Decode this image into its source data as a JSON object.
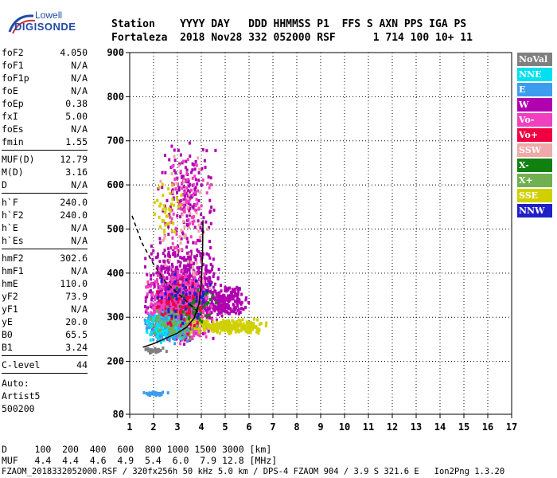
{
  "logo": {
    "line1": "Lowell",
    "line2": "DIGISONDE"
  },
  "header": {
    "line1": "Station    YYYY DAY   DDD HHMMSS P1  FFS S AXN PPS IGA PS",
    "line2": "Fortaleza  2018 Nov28 332 052000 RSF      1 714 100 10+ 11"
  },
  "params": [
    [
      {
        "k": "foF2",
        "v": "4.050"
      },
      {
        "k": "foF1",
        "v": "N/A"
      },
      {
        "k": "foF1p",
        "v": "N/A"
      },
      {
        "k": "foE",
        "v": "N/A"
      },
      {
        "k": "foEp",
        "v": "0.38"
      },
      {
        "k": "fxI",
        "v": "5.00"
      },
      {
        "k": "foEs",
        "v": "N/A"
      },
      {
        "k": "fmin",
        "v": "1.55"
      }
    ],
    [
      {
        "k": "MUF(D)",
        "v": "12.79"
      },
      {
        "k": "M(D)",
        "v": "3.16"
      },
      {
        "k": "D",
        "v": "N/A"
      }
    ],
    [
      {
        "k": "h`F",
        "v": "240.0"
      },
      {
        "k": "h`F2",
        "v": "240.0"
      },
      {
        "k": "h`E",
        "v": "N/A"
      },
      {
        "k": "h`Es",
        "v": "N/A"
      }
    ],
    [
      {
        "k": "hmF2",
        "v": "302.6"
      },
      {
        "k": "hmF1",
        "v": "N/A"
      },
      {
        "k": "hmE",
        "v": "110.0"
      },
      {
        "k": "yF2",
        "v": "73.9"
      },
      {
        "k": "yF1",
        "v": "N/A"
      },
      {
        "k": "yE",
        "v": "20.0"
      },
      {
        "k": "B0",
        "v": "65.5"
      },
      {
        "k": "B1",
        "v": "3.24"
      }
    ],
    [
      {
        "k": "C-level",
        "v": "44"
      }
    ]
  ],
  "auto": {
    "line1": "Auto:",
    "line2": "Artist5",
    "line3": "500200"
  },
  "legend": [
    {
      "label": "NoVal",
      "color": "#808080"
    },
    {
      "label": "NNE",
      "color": "#00e0f0"
    },
    {
      "label": "E",
      "color": "#3c9cf0"
    },
    {
      "label": "W",
      "color": "#b000b0"
    },
    {
      "label": "Vo-",
      "color": "#f040c0"
    },
    {
      "label": "Vo+",
      "color": "#f00040"
    },
    {
      "label": "SSW",
      "color": "#f0a8a8"
    },
    {
      "label": "X-",
      "color": "#108010"
    },
    {
      "label": "X+",
      "color": "#70b050"
    },
    {
      "label": "SSE",
      "color": "#d0d000"
    },
    {
      "label": "NNW",
      "color": "#2020c8"
    }
  ],
  "distance_line": "D     100  200  400  600  800 1000 1500 3000 [km]",
  "muf_line": "MUF   4.4  4.4  4.6  4.9  5.4  6.0  7.9 12.8 [MHz]",
  "footer": "FZAOM_2018332052000.RSF / 320fx256h 50 kHz 5.0 km / DPS-4 FZAOM 904 / 3.9 S 321.6 E   Ion2Png 1.3.20",
  "chart_data": {
    "type": "scatter",
    "xlabel": "",
    "ylabel": "",
    "xlim": [
      1,
      17
    ],
    "ylim": [
      80,
      900
    ],
    "x_ticks": [
      1,
      2,
      3,
      4,
      5,
      6,
      7,
      8,
      9,
      10,
      11,
      12,
      13,
      14,
      15,
      16,
      17
    ],
    "y_ticks": [
      80,
      200,
      300,
      400,
      500,
      600,
      700,
      800,
      900
    ],
    "x_unit": "MHz",
    "y_unit": "km",
    "traces": [
      {
        "name": "h'F2 trace",
        "style": "solid",
        "color": "#000000",
        "points": [
          [
            1.55,
            232
          ],
          [
            2.0,
            240
          ],
          [
            2.5,
            252
          ],
          [
            3.0,
            264
          ],
          [
            3.4,
            278
          ],
          [
            3.7,
            298
          ],
          [
            3.9,
            330
          ],
          [
            4.0,
            380
          ],
          [
            4.05,
            440
          ],
          [
            4.07,
            520
          ]
        ]
      },
      {
        "name": "profile",
        "style": "dashed",
        "color": "#000000",
        "points": [
          [
            1.1,
            530
          ],
          [
            1.5,
            470
          ],
          [
            2.0,
            420
          ],
          [
            2.5,
            380
          ],
          [
            3.0,
            355
          ],
          [
            3.5,
            330
          ],
          [
            3.8,
            315
          ],
          [
            4.0,
            305
          ]
        ]
      }
    ],
    "echo_groups": [
      {
        "color": "W",
        "x": [
          1.5,
          4.8
        ],
        "y": [
          240,
          470
        ],
        "n": 900
      },
      {
        "color": "Vo-",
        "x": [
          1.6,
          4.5
        ],
        "y": [
          240,
          420
        ],
        "n": 500
      },
      {
        "color": "W",
        "x": [
          2.0,
          4.6
        ],
        "y": [
          430,
          720
        ],
        "n": 160
      },
      {
        "color": "Vo-",
        "x": [
          2.2,
          4.5
        ],
        "y": [
          440,
          700
        ],
        "n": 80
      },
      {
        "color": "W",
        "x": [
          4.2,
          6.0
        ],
        "y": [
          300,
          380
        ],
        "n": 180
      },
      {
        "color": "SSE",
        "x": [
          3.3,
          6.7
        ],
        "y": [
          265,
          300
        ],
        "n": 260
      },
      {
        "color": "SSE",
        "x": [
          1.9,
          3.3
        ],
        "y": [
          480,
          620
        ],
        "n": 40
      },
      {
        "color": "E",
        "x": [
          1.5,
          3.5
        ],
        "y": [
          240,
          320
        ],
        "n": 140
      },
      {
        "color": "NNE",
        "x": [
          1.5,
          3.3
        ],
        "y": [
          245,
          320
        ],
        "n": 110
      },
      {
        "color": "X+",
        "x": [
          1.6,
          4.0
        ],
        "y": [
          250,
          330
        ],
        "n": 90
      },
      {
        "color": "X-",
        "x": [
          2.5,
          5.0
        ],
        "y": [
          280,
          380
        ],
        "n": 50
      },
      {
        "color": "Vo+",
        "x": [
          2.0,
          4.2
        ],
        "y": [
          260,
          400
        ],
        "n": 70
      },
      {
        "color": "SSW",
        "x": [
          2.0,
          4.5
        ],
        "y": [
          300,
          700
        ],
        "n": 50
      },
      {
        "color": "NNW",
        "x": [
          2.0,
          4.5
        ],
        "y": [
          280,
          420
        ],
        "n": 50
      },
      {
        "color": "NoVal",
        "x": [
          1.5,
          2.5
        ],
        "y": [
          220,
          235
        ],
        "n": 30
      },
      {
        "color": "E",
        "x": [
          1.5,
          2.6
        ],
        "y": [
          125,
          135
        ],
        "n": 40
      }
    ]
  }
}
